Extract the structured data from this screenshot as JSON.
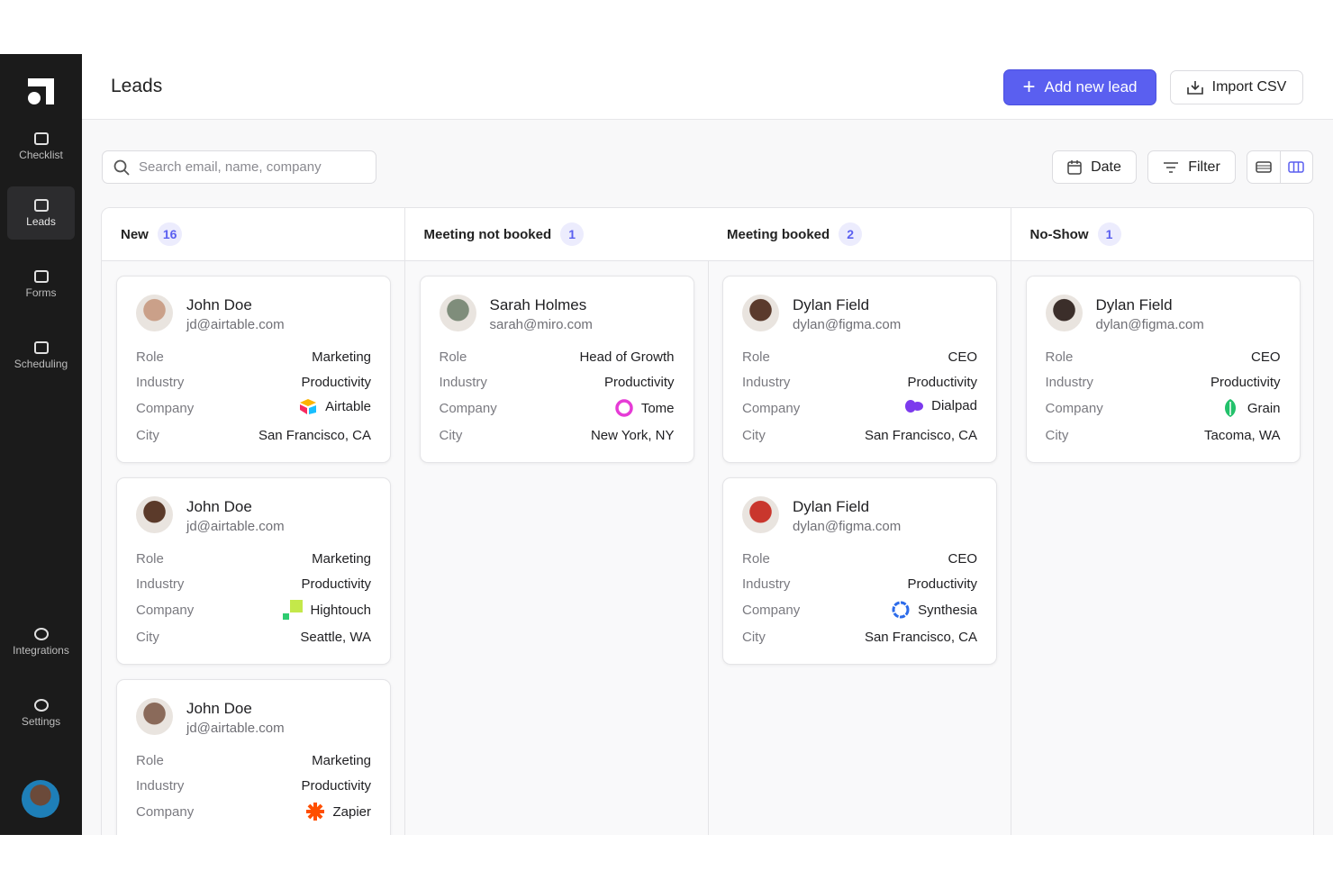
{
  "sidebar": {
    "nav": [
      "Checklist",
      "Leads",
      "Forms",
      "Scheduling"
    ],
    "bottom_nav": [
      "Integrations",
      "Settings"
    ]
  },
  "header": {
    "title": "Leads",
    "add_button": "Add new lead",
    "import_button": "Import CSV"
  },
  "toolbar": {
    "search_placeholder": "Search email, name, company",
    "date_button": "Date",
    "filter_button": "Filter"
  },
  "columns": [
    {
      "title": "New",
      "count": 16,
      "cards": [
        {
          "name": "John Doe",
          "email": "jd@airtable.com",
          "fields": [
            {
              "label": "Role",
              "value": "Marketing"
            },
            {
              "label": "Industry",
              "value": "Productivity"
            },
            {
              "label": "Company",
              "value": "Airtable"
            },
            {
              "label": "City",
              "value": "San Francisco, CA"
            }
          ]
        },
        {
          "name": "John Doe",
          "email": "jd@airtable.com",
          "fields": [
            {
              "label": "Role",
              "value": "Marketing"
            },
            {
              "label": "Industry",
              "value": "Productivity"
            },
            {
              "label": "Company",
              "value": "Hightouch"
            },
            {
              "label": "City",
              "value": "Seattle, WA"
            }
          ]
        },
        {
          "name": "John Doe",
          "email": "jd@airtable.com",
          "fields": [
            {
              "label": "Role",
              "value": "Marketing"
            },
            {
              "label": "Industry",
              "value": "Productivity"
            },
            {
              "label": "Company",
              "value": "Zapier"
            }
          ]
        }
      ]
    },
    {
      "title": "Meeting not booked",
      "count": 1,
      "cards": [
        {
          "name": "Sarah Holmes",
          "email": "sarah@miro.com",
          "fields": [
            {
              "label": "Role",
              "value": "Head of Growth"
            },
            {
              "label": "Industry",
              "value": "Productivity"
            },
            {
              "label": "Company",
              "value": "Tome"
            },
            {
              "label": "City",
              "value": "New York, NY"
            }
          ]
        }
      ]
    },
    {
      "title": "Meeting booked",
      "count": 2,
      "cards": [
        {
          "name": "Dylan Field",
          "email": "dylan@figma.com",
          "fields": [
            {
              "label": "Role",
              "value": "CEO"
            },
            {
              "label": "Industry",
              "value": "Productivity"
            },
            {
              "label": "Company",
              "value": "Dialpad"
            },
            {
              "label": "City",
              "value": "San Francisco, CA"
            }
          ]
        },
        {
          "name": "Dylan Field",
          "email": "dylan@figma.com",
          "fields": [
            {
              "label": "Role",
              "value": "CEO"
            },
            {
              "label": "Industry",
              "value": "Productivity"
            },
            {
              "label": "Company",
              "value": "Synthesia"
            },
            {
              "label": "City",
              "value": "San Francisco, CA"
            }
          ]
        }
      ]
    },
    {
      "title": "No-Show",
      "count": 1,
      "cards": [
        {
          "name": "Dylan Field",
          "email": "dylan@figma.com",
          "fields": [
            {
              "label": "Role",
              "value": "CEO"
            },
            {
              "label": "Industry",
              "value": "Productivity"
            },
            {
              "label": "Company",
              "value": "Grain"
            },
            {
              "label": "City",
              "value": "Tacoma, WA"
            }
          ]
        }
      ]
    }
  ]
}
